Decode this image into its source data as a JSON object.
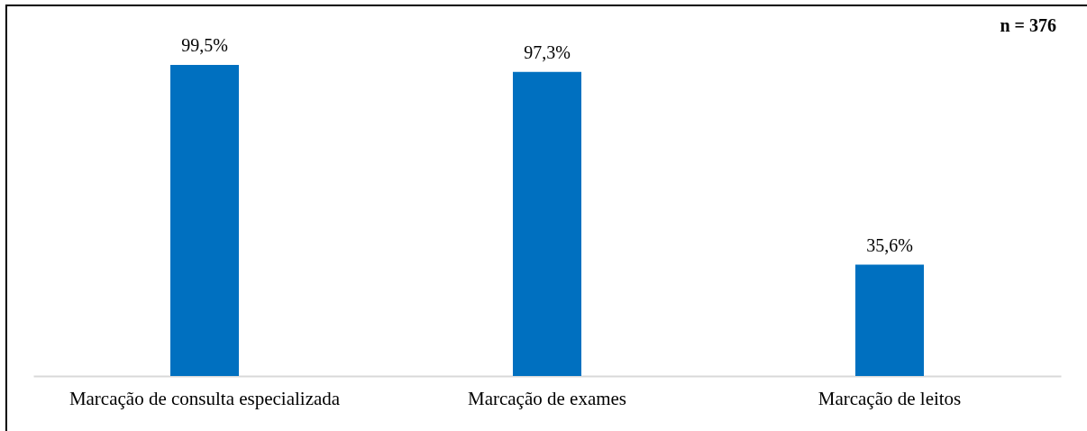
{
  "chart_data": {
    "type": "bar",
    "categories": [
      "Marcação de consulta especializada",
      "Marcação de exames",
      "Marcação de leitos"
    ],
    "values": [
      99.5,
      97.3,
      35.6
    ],
    "value_labels": [
      "99,5%",
      "97,3%",
      "35,6%"
    ],
    "color": "#0070c0",
    "annotations": [
      "n = 376"
    ]
  }
}
